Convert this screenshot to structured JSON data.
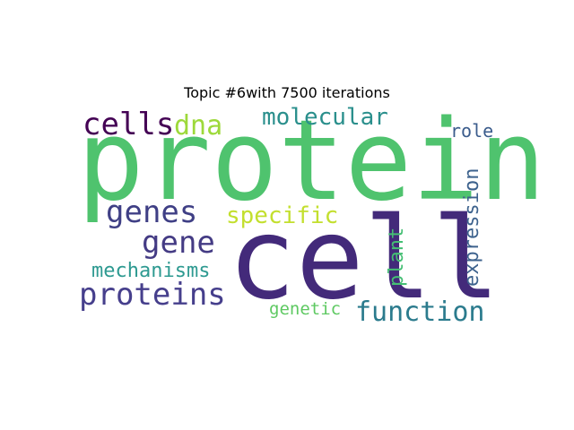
{
  "chart_data": {
    "type": "wordcloud",
    "title": "Topic #6with 7500 iterations",
    "words": [
      {
        "text": "protein",
        "color": "#4fc36e",
        "orientation": "horizontal"
      },
      {
        "text": "cell",
        "color": "#432a7a",
        "orientation": "horizontal"
      },
      {
        "text": "cells",
        "color": "#440154",
        "orientation": "horizontal"
      },
      {
        "text": "dna",
        "color": "#9dd93a",
        "orientation": "horizontal"
      },
      {
        "text": "molecular",
        "color": "#2a8f8c",
        "orientation": "horizontal"
      },
      {
        "text": "role",
        "color": "#3b5c8c",
        "orientation": "horizontal"
      },
      {
        "text": "genes",
        "color": "#3f3f85",
        "orientation": "horizontal"
      },
      {
        "text": "specific",
        "color": "#c3df2e",
        "orientation": "horizontal"
      },
      {
        "text": "gene",
        "color": "#443b84",
        "orientation": "horizontal"
      },
      {
        "text": "mechanisms",
        "color": "#2e9a91",
        "orientation": "horizontal"
      },
      {
        "text": "proteins",
        "color": "#463f8c",
        "orientation": "horizontal"
      },
      {
        "text": "function",
        "color": "#2b7b8d",
        "orientation": "horizontal"
      },
      {
        "text": "genetic",
        "color": "#5ec962",
        "orientation": "horizontal"
      },
      {
        "text": "plant",
        "color": "#45bf74",
        "orientation": "vertical"
      },
      {
        "text": "expression",
        "color": "#3d628d",
        "orientation": "vertical"
      }
    ]
  }
}
